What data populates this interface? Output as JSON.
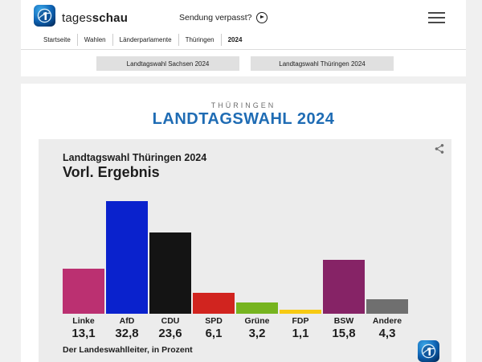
{
  "header": {
    "brand_regular": "tages",
    "brand_bold": "schau",
    "sendung_verpasst_label": "Sendung verpasst?"
  },
  "breadcrumb": {
    "items": [
      "Startseite",
      "Wahlen",
      "Länderparlamente",
      "Thüringen",
      "2024"
    ]
  },
  "nav_buttons": [
    {
      "label": "Landtagswahl Sachsen 2024"
    },
    {
      "label": "Landtagswahl Thüringen 2024"
    }
  ],
  "page": {
    "kicker": "THÜRINGEN",
    "title": "LANDTAGSWAHL 2024",
    "title_color": "#1F6CB4"
  },
  "chart_data": {
    "type": "bar",
    "title": "Landtagswahl Thüringen 2024",
    "subtitle": "Vorl. Ergebnis",
    "source": "Der Landeswahlleiter, in Prozent",
    "categories": [
      "Linke",
      "AfD",
      "CDU",
      "SPD",
      "Grüne",
      "FDP",
      "BSW",
      "Andere"
    ],
    "values": [
      13.1,
      32.8,
      23.6,
      6.1,
      3.2,
      1.1,
      15.8,
      4.3
    ],
    "value_labels": [
      "13,1",
      "32,8",
      "23,6",
      "6,1",
      "3,2",
      "1,1",
      "15,8",
      "4,3"
    ],
    "colors": [
      "#BB3071",
      "#0A22CD",
      "#141414",
      "#D1241F",
      "#76B41F",
      "#F7CA12",
      "#862366",
      "#6F6F6F"
    ],
    "ylim": [
      0,
      35
    ],
    "grid": false,
    "legend": false,
    "card_background": "#ECECEC"
  }
}
